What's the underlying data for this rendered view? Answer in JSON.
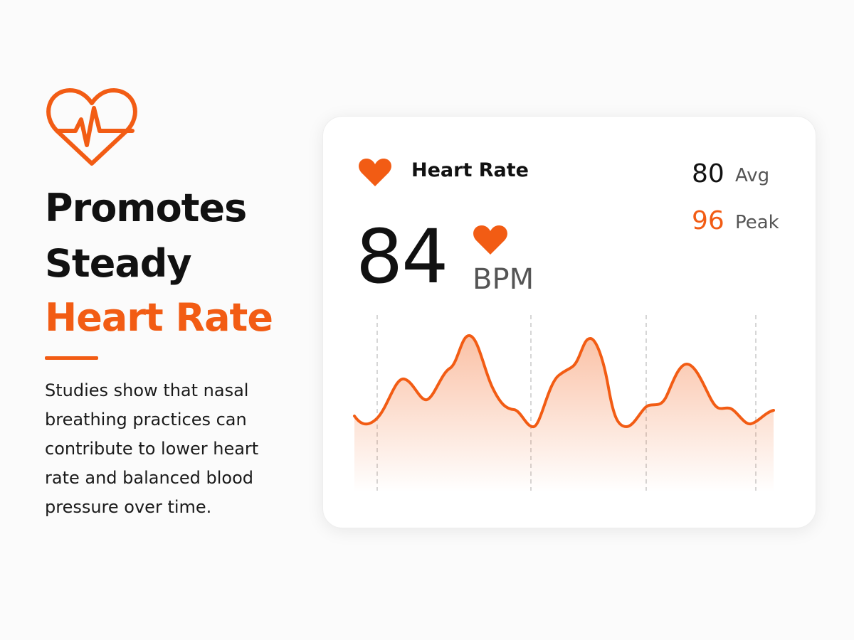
{
  "headline": {
    "lines": [
      "Promotes",
      "Steady",
      "Heart Rate"
    ]
  },
  "description": {
    "lines": [
      "Studies show that nasal",
      "breathing practices can",
      "contribute to lower heart",
      "rate and balanced blood",
      "pressure over time."
    ]
  },
  "card": {
    "title": "Heart Rate",
    "value": "84",
    "unit": "BPM",
    "stats": [
      {
        "value": "80",
        "label": "Avg"
      },
      {
        "value": "96",
        "label": "Peak"
      }
    ]
  }
}
